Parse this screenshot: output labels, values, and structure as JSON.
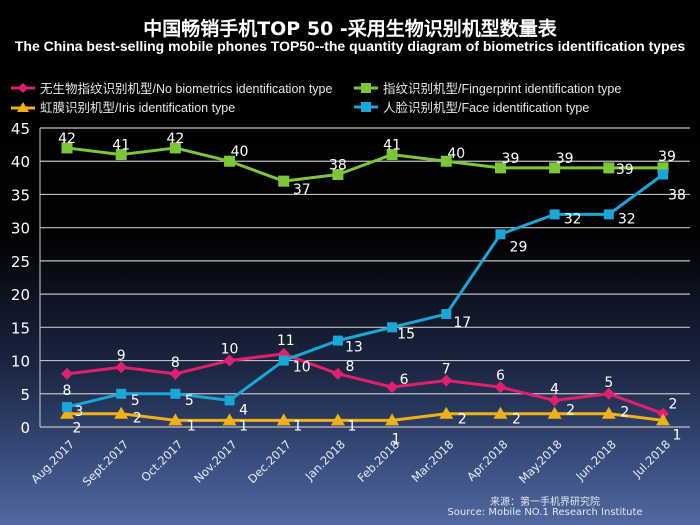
{
  "title_cn": "中国畅销手机TOP 50 -采用生物识别机型数量表",
  "title_en": "The China best-selling mobile phones TOP50--the quantity diagram of biometrics identification types",
  "source_cn": "来源：第一手机界研究院",
  "source_en": "Source: Mobile NO.1 Research Institute",
  "chart_data": {
    "type": "line",
    "title": "中国畅销手机TOP 50 -采用生物识别机型数量表",
    "subtitle": "The China best-selling mobile phones TOP50--the quantity diagram of biometrics identification types",
    "xlabel": "",
    "ylabel": "",
    "ylim": [
      0,
      45
    ],
    "yticks": [
      0,
      5,
      10,
      15,
      20,
      25,
      30,
      35,
      40,
      45
    ],
    "grid": true,
    "legend_position": "top",
    "categories": [
      "Aug.2017",
      "Sept.2017",
      "Oct.2017",
      "Nov.2017",
      "Dec.2017",
      "Jan.2018",
      "Feb.2018",
      "Mar.2018",
      "Apr.2018",
      "May.2018",
      "Jun.2018",
      "Jul.2018"
    ],
    "series": [
      {
        "name": "无生物指纹识别机型/No biometrics identification type",
        "marker": "diamond",
        "color": "#e0206e",
        "values": [
          8,
          9,
          8,
          10,
          11,
          8,
          6,
          7,
          6,
          4,
          5,
          2
        ]
      },
      {
        "name": "指纹识别机型/Fingerprint identification type",
        "marker": "square",
        "color": "#7cc63a",
        "values": [
          42,
          41,
          42,
          40,
          37,
          38,
          41,
          40,
          39,
          39,
          39,
          39
        ]
      },
      {
        "name": "虹膜识别机型/Iris identification type",
        "marker": "triangle",
        "color": "#f0b01a",
        "values": [
          2,
          2,
          1,
          1,
          1,
          1,
          1,
          2,
          2,
          2,
          2,
          1
        ]
      },
      {
        "name": "人脸识别机型/Face identification type",
        "marker": "square",
        "color": "#1aa6d6",
        "values": [
          3,
          5,
          5,
          4,
          10,
          13,
          15,
          17,
          29,
          32,
          32,
          38
        ]
      }
    ]
  }
}
